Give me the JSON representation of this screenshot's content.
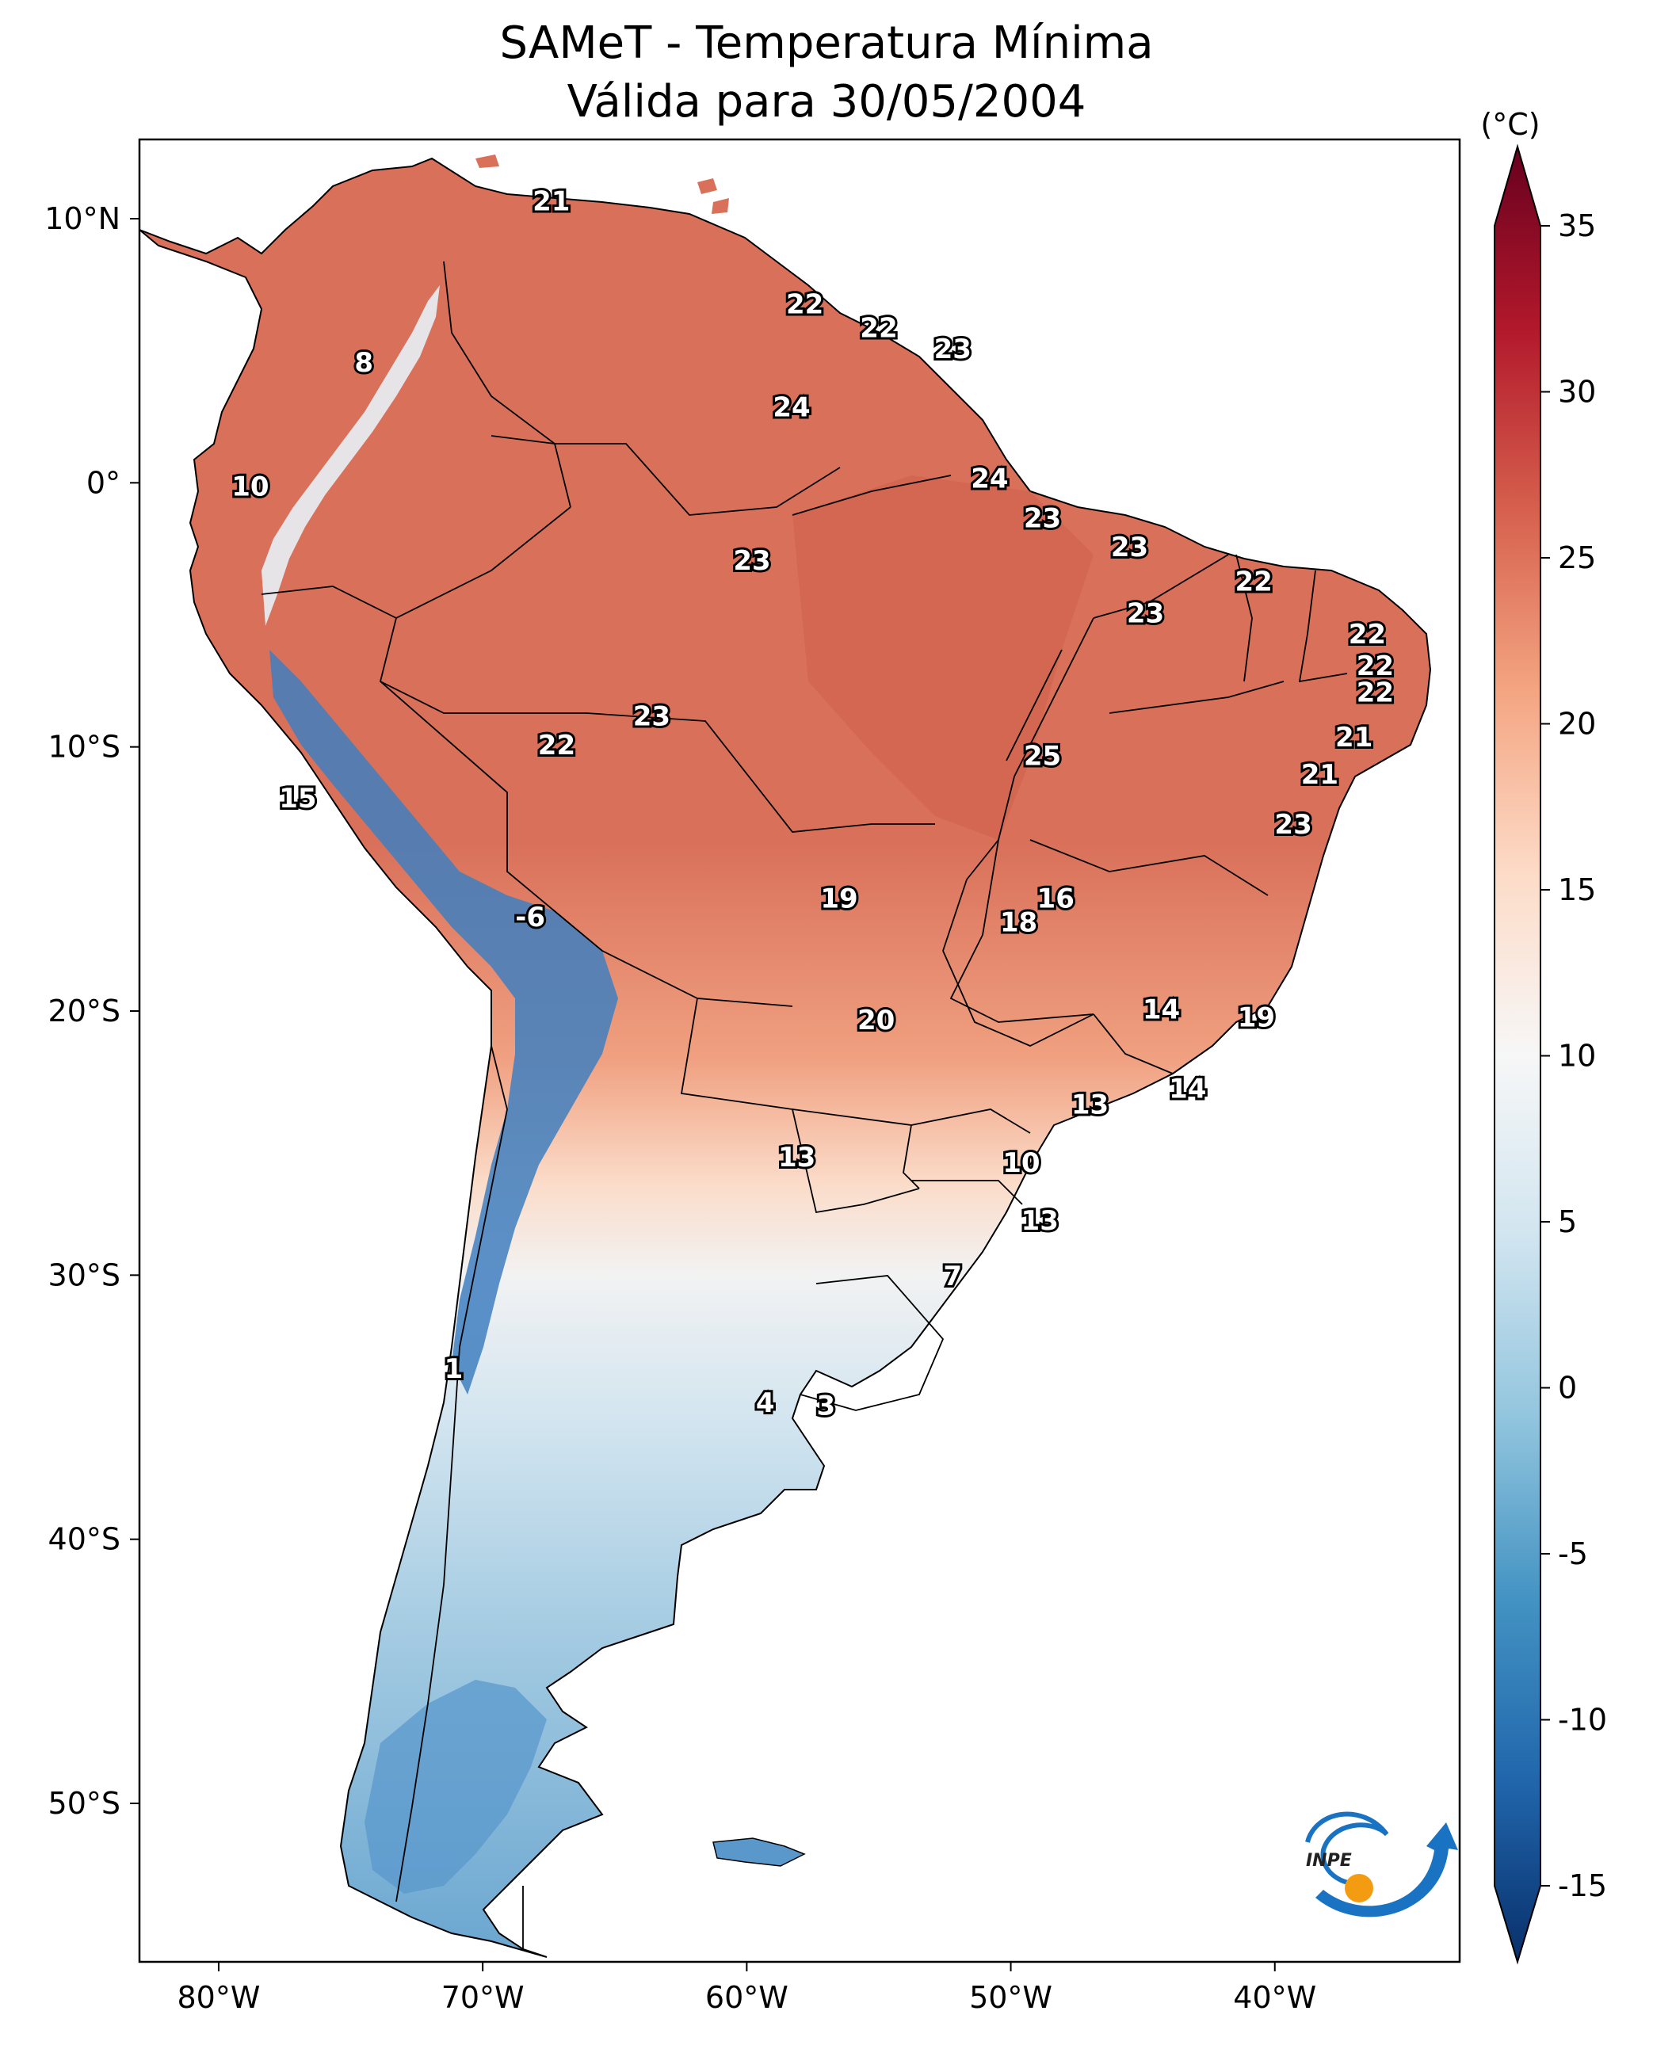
{
  "title": {
    "line1": "SAMeT - Temperatura Mínima",
    "line2": "Válida para 30/05/2004"
  },
  "axes": {
    "lon_ticks": [
      "80°W",
      "70°W",
      "60°W",
      "50°W",
      "40°W"
    ],
    "lat_ticks": [
      "10°N",
      "0°",
      "10°S",
      "20°S",
      "30°S",
      "40°S",
      "50°S"
    ],
    "lon_range": [
      -83,
      -33
    ],
    "lat_range": [
      -56,
      13
    ]
  },
  "colorbar": {
    "unit": "(°C)",
    "ticks": [
      "35",
      "30",
      "25",
      "20",
      "15",
      "10",
      "5",
      "0",
      "-5",
      "-10",
      "-15"
    ],
    "range": [
      -15,
      35
    ],
    "colors": [
      "#08306b",
      "#2166ac",
      "#4393c3",
      "#92c5de",
      "#d1e5f0",
      "#f7f7f7",
      "#fddbc7",
      "#f4a582",
      "#d6604d",
      "#b2182b",
      "#67001f"
    ]
  },
  "contour_labels": [
    {
      "text": "21",
      "lon": -67.4,
      "lat": 10.6
    },
    {
      "text": "8",
      "lon": -74.5,
      "lat": 4.5
    },
    {
      "text": "22",
      "lon": -57.8,
      "lat": 6.7
    },
    {
      "text": "22",
      "lon": -55.0,
      "lat": 5.8
    },
    {
      "text": "23",
      "lon": -52.2,
      "lat": 5.0
    },
    {
      "text": "24",
      "lon": -58.3,
      "lat": 2.8
    },
    {
      "text": "10",
      "lon": -78.8,
      "lat": -0.2
    },
    {
      "text": "24",
      "lon": -50.8,
      "lat": 0.1
    },
    {
      "text": "23",
      "lon": -48.8,
      "lat": -1.4
    },
    {
      "text": "23",
      "lon": -45.5,
      "lat": -2.5
    },
    {
      "text": "23",
      "lon": -59.8,
      "lat": -3.0
    },
    {
      "text": "22",
      "lon": -40.8,
      "lat": -3.8
    },
    {
      "text": "23",
      "lon": -44.9,
      "lat": -5.0
    },
    {
      "text": "22",
      "lon": -36.5,
      "lat": -5.8
    },
    {
      "text": "22",
      "lon": -36.2,
      "lat": -7.0
    },
    {
      "text": "22",
      "lon": -36.2,
      "lat": -8.0
    },
    {
      "text": "23",
      "lon": -63.6,
      "lat": -8.9
    },
    {
      "text": "21",
      "lon": -37.0,
      "lat": -9.7
    },
    {
      "text": "22",
      "lon": -67.2,
      "lat": -10.0
    },
    {
      "text": "25",
      "lon": -48.8,
      "lat": -10.4
    },
    {
      "text": "21",
      "lon": -38.3,
      "lat": -11.1
    },
    {
      "text": "15",
      "lon": -77.0,
      "lat": -12.0
    },
    {
      "text": "23",
      "lon": -39.3,
      "lat": -13.0
    },
    {
      "text": "19",
      "lon": -56.5,
      "lat": -15.8
    },
    {
      "text": "16",
      "lon": -48.3,
      "lat": -15.8
    },
    {
      "text": "-6",
      "lon": -68.2,
      "lat": -16.5
    },
    {
      "text": "18",
      "lon": -49.7,
      "lat": -16.7
    },
    {
      "text": "14",
      "lon": -44.3,
      "lat": -20.0
    },
    {
      "text": "19",
      "lon": -40.7,
      "lat": -20.3
    },
    {
      "text": "20",
      "lon": -55.1,
      "lat": -20.4
    },
    {
      "text": "14",
      "lon": -43.3,
      "lat": -23.0
    },
    {
      "text": "13",
      "lon": -47.0,
      "lat": -23.6
    },
    {
      "text": "10",
      "lon": -49.6,
      "lat": -25.8
    },
    {
      "text": "13",
      "lon": -58.1,
      "lat": -25.6
    },
    {
      "text": "13",
      "lon": -48.9,
      "lat": -28.0
    },
    {
      "text": "7",
      "lon": -52.2,
      "lat": -30.1
    },
    {
      "text": "1",
      "lon": -71.1,
      "lat": -33.6
    },
    {
      "text": "4",
      "lon": -59.3,
      "lat": -34.9
    },
    {
      "text": "3",
      "lon": -57.0,
      "lat": -35.0
    }
  ],
  "logo": {
    "text": "INPE"
  }
}
